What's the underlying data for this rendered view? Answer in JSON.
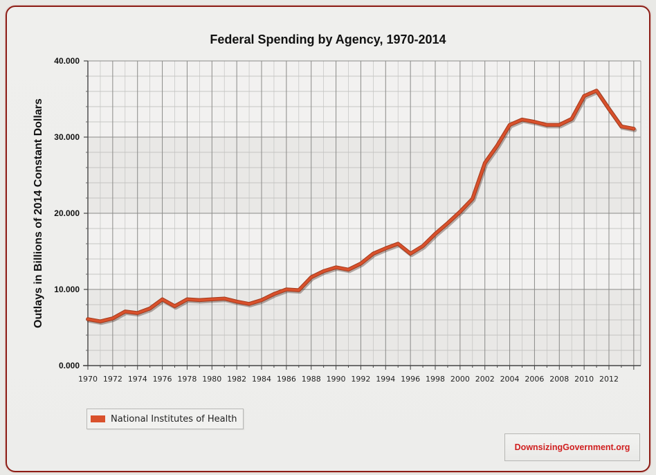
{
  "chart_data": {
    "type": "line",
    "title": "Federal Spending by Agency, 1970-2014",
    "xlabel": "",
    "ylabel": "Outlays in Billions of 2014 Constant Dollars",
    "ylim": [
      0,
      40
    ],
    "xlim": [
      1970,
      2014.5
    ],
    "grid": true,
    "legend_position": "bottom-left",
    "y_ticks": [
      "0.000",
      "10.000",
      "20.000",
      "30.000",
      "40.000"
    ],
    "y_tick_values": [
      0,
      10,
      20,
      30,
      40
    ],
    "x_ticks": [
      "1970",
      "1972",
      "1974",
      "1976",
      "1978",
      "1980",
      "1982",
      "1984",
      "1986",
      "1988",
      "1990",
      "1992",
      "1994",
      "1996",
      "1998",
      "2000",
      "2002",
      "2004",
      "2006",
      "2008",
      "2010",
      "2012"
    ],
    "x": [
      1970,
      1971,
      1972,
      1973,
      1974,
      1975,
      1976,
      1977,
      1978,
      1979,
      1980,
      1981,
      1982,
      1983,
      1984,
      1985,
      1986,
      1987,
      1988,
      1989,
      1990,
      1991,
      1992,
      1993,
      1994,
      1995,
      1996,
      1997,
      1998,
      1999,
      2000,
      2001,
      2002,
      2003,
      2004,
      2005,
      2006,
      2007,
      2008,
      2009,
      2010,
      2011,
      2012,
      2013,
      2014
    ],
    "series": [
      {
        "name": "National Institutes of Health",
        "color": "#d9512c",
        "values": [
          6.1,
          5.8,
          6.2,
          7.1,
          6.9,
          7.5,
          8.7,
          7.8,
          8.7,
          8.6,
          8.7,
          8.8,
          8.4,
          8.1,
          8.6,
          9.4,
          10.0,
          9.9,
          11.6,
          12.4,
          12.9,
          12.6,
          13.4,
          14.7,
          15.4,
          16.0,
          14.7,
          15.7,
          17.3,
          18.7,
          20.2,
          21.9,
          26.6,
          28.9,
          31.6,
          32.3,
          32.0,
          31.6,
          31.6,
          32.4,
          35.4,
          36.1,
          33.7,
          31.4,
          31.1
        ]
      }
    ]
  },
  "legend": {
    "label": "National Institutes of Health"
  },
  "branding": {
    "text": "DownsizingGovernment.org",
    "color": "#d01f1f"
  }
}
